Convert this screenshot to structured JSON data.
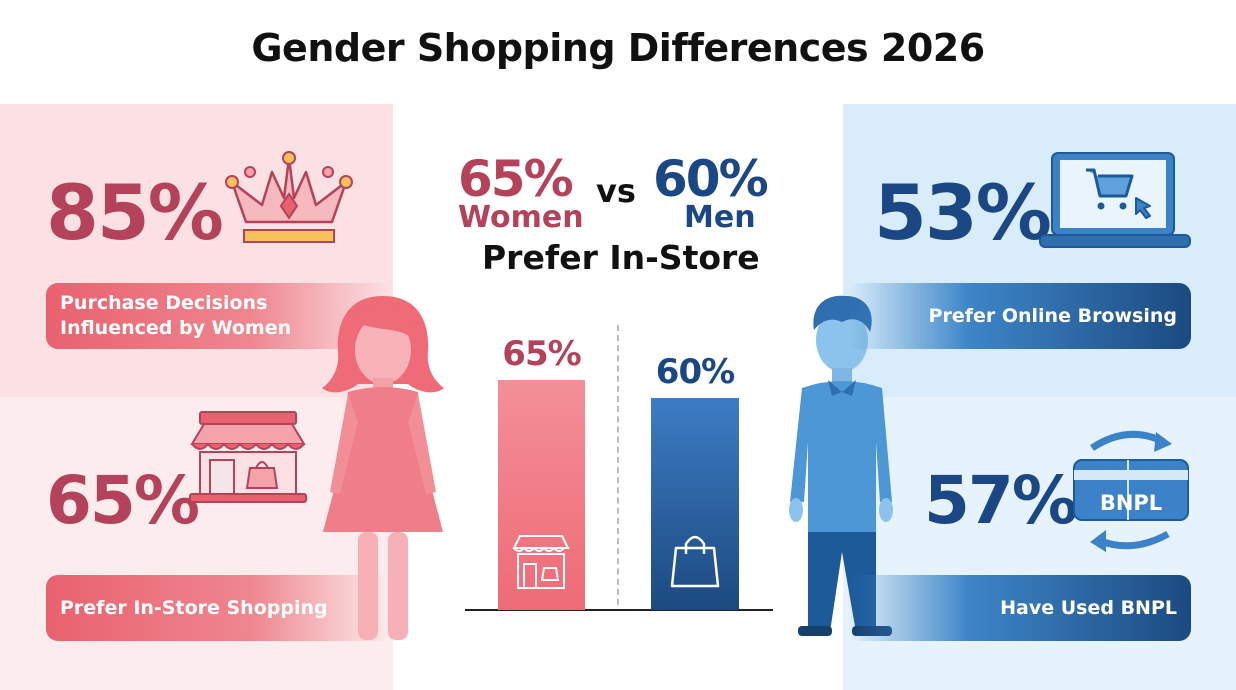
{
  "title": "Gender Shopping Differences 2026",
  "left": {
    "stat1": {
      "value": "85%",
      "label_line1": "Purchase Decisions",
      "label_line2": "Influenced by Women",
      "icon": "crown-icon"
    },
    "stat2": {
      "value": "65%",
      "label": "Prefer In-Store Shopping",
      "icon": "storefront-icon"
    }
  },
  "right": {
    "stat1": {
      "value": "53%",
      "label": "Prefer Online Browsing",
      "icon": "laptop-cart-icon"
    },
    "stat2": {
      "value": "57%",
      "label": "Have Used BNPL",
      "icon": "bnpl-card-icon",
      "icon_text": "BNPL"
    }
  },
  "center": {
    "women_value": "65%",
    "women_label": "Women",
    "vs": "vs",
    "men_value": "60%",
    "men_label": "Men",
    "subtitle": "Prefer In-Store"
  },
  "colors": {
    "women": "#e9616f",
    "men": "#1c4a80",
    "women_text": "#b4425a",
    "men_text": "#1b4885"
  },
  "chart_data": {
    "type": "bar",
    "title": "Prefer In-Store",
    "categories": [
      "Women",
      "Men"
    ],
    "values": [
      65,
      60
    ],
    "data_labels": [
      "65%",
      "60%"
    ],
    "ylim": [
      0,
      100
    ],
    "grid": false
  }
}
